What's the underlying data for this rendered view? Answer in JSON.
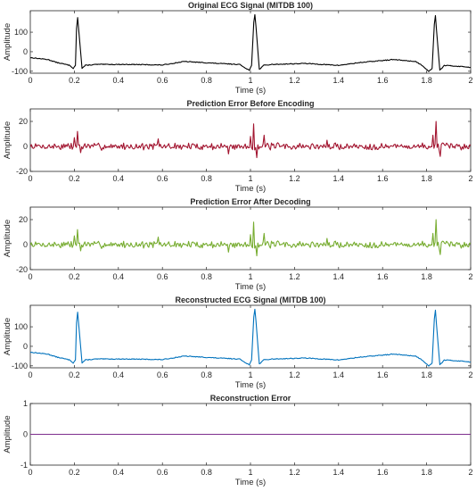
{
  "figure": {
    "background": "#ffffff"
  },
  "chart_data": [
    {
      "type": "line",
      "title": "Original ECG Signal (MITDB 100)",
      "xlabel": "Time (s)",
      "ylabel": "Amplitude",
      "xlim": [
        0,
        2
      ],
      "ylim": [
        -110,
        210
      ],
      "xticks": [
        "0",
        "0.2",
        "0.4",
        "0.6",
        "0.8",
        "1",
        "1.2",
        "1.4",
        "1.6",
        "1.8",
        "2"
      ],
      "yticks": [
        {
          "value": 100,
          "label": "100"
        },
        {
          "value": 0,
          "label": "0"
        },
        {
          "value": -100,
          "label": "-100"
        }
      ],
      "series": [
        {
          "color": "#000000",
          "signal": "ecg",
          "x": [
            0,
            0.08,
            0.12,
            0.16,
            0.18,
            0.195,
            0.205,
            0.21,
            0.215,
            0.22,
            0.235,
            0.25,
            0.3,
            0.45,
            0.6,
            0.7,
            0.85,
            0.95,
            0.98,
            0.995,
            1.005,
            1.015,
            1.02,
            1.025,
            1.04,
            1.06,
            1.1,
            1.25,
            1.4,
            1.5,
            1.65,
            1.75,
            1.78,
            1.81,
            1.825,
            1.835,
            1.84,
            1.845,
            1.86,
            1.88,
            1.95,
            2
          ],
          "y": [
            -30,
            -40,
            -55,
            -65,
            -70,
            -85,
            -70,
            120,
            175,
            110,
            -85,
            -70,
            -65,
            -65,
            -68,
            -50,
            -60,
            -65,
            -85,
            -95,
            -70,
            150,
            190,
            130,
            -90,
            -70,
            -65,
            -60,
            -70,
            -55,
            -40,
            -50,
            -70,
            -100,
            -85,
            140,
            185,
            110,
            -95,
            -70,
            -75,
            -80
          ]
        }
      ]
    },
    {
      "type": "line",
      "title": "Prediction Error Before Encoding",
      "xlabel": "Time (s)",
      "ylabel": "Amplitude",
      "xlim": [
        0,
        2
      ],
      "ylim": [
        -20,
        30
      ],
      "xticks": [
        "0",
        "0.2",
        "0.4",
        "0.6",
        "0.8",
        "1",
        "1.2",
        "1.4",
        "1.6",
        "1.8",
        "2"
      ],
      "yticks": [
        {
          "value": 20,
          "label": "20"
        },
        {
          "value": 0,
          "label": "0"
        },
        {
          "value": -20,
          "label": "-20"
        }
      ],
      "series": [
        {
          "color": "#a2142f",
          "signal": "noise",
          "seed": 7,
          "noise_amplitude": 2.2,
          "spikes": [
            {
              "x": 0.2,
              "y": 7
            },
            {
              "x": 0.215,
              "y": 12
            },
            {
              "x": 0.23,
              "y": -5
            },
            {
              "x": 0.58,
              "y": 6
            },
            {
              "x": 0.9,
              "y": -6
            },
            {
              "x": 1.0,
              "y": 8
            },
            {
              "x": 1.015,
              "y": 18
            },
            {
              "x": 1.03,
              "y": -9
            },
            {
              "x": 1.06,
              "y": 9
            },
            {
              "x": 1.35,
              "y": 5
            },
            {
              "x": 1.83,
              "y": 9
            },
            {
              "x": 1.845,
              "y": 20
            },
            {
              "x": 1.86,
              "y": -8
            }
          ]
        }
      ]
    },
    {
      "type": "line",
      "title": "Prediction Error After Decoding",
      "xlabel": "Time (s)",
      "ylabel": "Amplitude",
      "xlim": [
        0,
        2
      ],
      "ylim": [
        -20,
        30
      ],
      "xticks": [
        "0",
        "0.2",
        "0.4",
        "0.6",
        "0.8",
        "1",
        "1.2",
        "1.4",
        "1.6",
        "1.8",
        "2"
      ],
      "yticks": [
        {
          "value": 20,
          "label": "20"
        },
        {
          "value": 0,
          "label": "0"
        },
        {
          "value": -20,
          "label": "-20"
        }
      ],
      "series": [
        {
          "color": "#77ac30",
          "signal": "noise",
          "seed": 7,
          "noise_amplitude": 2.2,
          "spikes": [
            {
              "x": 0.2,
              "y": 7
            },
            {
              "x": 0.215,
              "y": 12
            },
            {
              "x": 0.23,
              "y": -5
            },
            {
              "x": 0.58,
              "y": 6
            },
            {
              "x": 0.9,
              "y": -6
            },
            {
              "x": 1.0,
              "y": 8
            },
            {
              "x": 1.015,
              "y": 18
            },
            {
              "x": 1.03,
              "y": -9
            },
            {
              "x": 1.06,
              "y": 9
            },
            {
              "x": 1.35,
              "y": 5
            },
            {
              "x": 1.83,
              "y": 9
            },
            {
              "x": 1.845,
              "y": 20
            },
            {
              "x": 1.86,
              "y": -8
            }
          ]
        }
      ]
    },
    {
      "type": "line",
      "title": "Reconstructed ECG Signal (MITDB 100)",
      "xlabel": "Time (s)",
      "ylabel": "Amplitude",
      "xlim": [
        0,
        2
      ],
      "ylim": [
        -110,
        210
      ],
      "xticks": [
        "0",
        "0.2",
        "0.4",
        "0.6",
        "0.8",
        "1",
        "1.2",
        "1.4",
        "1.6",
        "1.8",
        "2"
      ],
      "yticks": [
        {
          "value": 100,
          "label": "100"
        },
        {
          "value": 0,
          "label": "0"
        },
        {
          "value": -100,
          "label": "-100"
        }
      ],
      "series": [
        {
          "color": "#0072bd",
          "signal": "ecg",
          "x": [
            0,
            0.08,
            0.12,
            0.16,
            0.18,
            0.195,
            0.205,
            0.21,
            0.215,
            0.22,
            0.235,
            0.25,
            0.3,
            0.45,
            0.6,
            0.7,
            0.85,
            0.95,
            0.98,
            0.995,
            1.005,
            1.015,
            1.02,
            1.025,
            1.04,
            1.06,
            1.1,
            1.25,
            1.4,
            1.5,
            1.65,
            1.75,
            1.78,
            1.81,
            1.825,
            1.835,
            1.84,
            1.845,
            1.86,
            1.88,
            1.95,
            2
          ],
          "y": [
            -30,
            -40,
            -55,
            -65,
            -70,
            -85,
            -70,
            120,
            175,
            110,
            -85,
            -70,
            -65,
            -65,
            -68,
            -50,
            -60,
            -65,
            -85,
            -95,
            -70,
            150,
            190,
            130,
            -90,
            -70,
            -65,
            -60,
            -70,
            -55,
            -40,
            -50,
            -70,
            -100,
            -85,
            140,
            185,
            110,
            -95,
            -70,
            -75,
            -80
          ]
        }
      ]
    },
    {
      "type": "line",
      "title": "Reconstruction Error",
      "xlabel": "Time (s)",
      "ylabel": "Amplitude",
      "xlim": [
        0,
        2
      ],
      "ylim": [
        -1,
        1
      ],
      "xticks": [
        "0",
        "0.2",
        "0.4",
        "0.6",
        "0.8",
        "1",
        "1.2",
        "1.4",
        "1.6",
        "1.8",
        "2"
      ],
      "yticks": [
        {
          "value": 1,
          "label": "1"
        },
        {
          "value": 0,
          "label": "0"
        },
        {
          "value": -1,
          "label": "-1"
        }
      ],
      "series": [
        {
          "color": "#7e2f8e",
          "signal": "points",
          "x": [
            0,
            2
          ],
          "y": [
            0,
            0
          ]
        }
      ]
    }
  ]
}
